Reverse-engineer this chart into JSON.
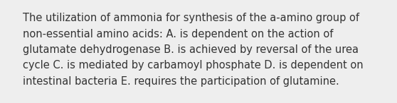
{
  "lines": [
    "The utilization of ammonia for synthesis of the a-amino group of",
    "non-essential amino acids: A. is dependent on the action of",
    "glutamate dehydrogenase B. is achieved by reversal of the urea",
    "cycle C. is mediated by carbamoyl phosphate D. is dependent on",
    "intestinal bacteria E. requires the participation of glutamine."
  ],
  "background_color": "#eeeeee",
  "text_color": "#333333",
  "font_size": 10.5,
  "fig_width": 5.58,
  "fig_height": 1.46,
  "dpi": 100
}
